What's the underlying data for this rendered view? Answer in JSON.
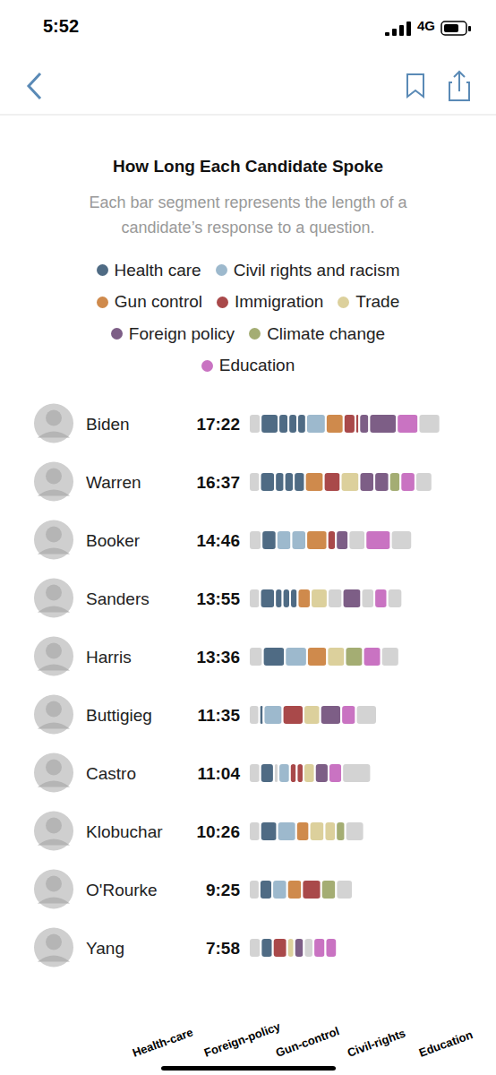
{
  "screen": {
    "status_time": "5:52",
    "network": "4G"
  },
  "chart_data": {
    "type": "bar",
    "orientation": "horizontal",
    "stacked": true,
    "title": "How Long Each Candidate Spoke",
    "subtitle": "Each bar segment represents the length of a candidate’s response to a question.",
    "legend": "top",
    "tick_labels": false,
    "xlim": [
      0,
      1100
    ],
    "series": [
      {
        "name": "Health care",
        "color": "#4f6b84"
      },
      {
        "name": "Civil rights and racism",
        "color": "#9db9cd"
      },
      {
        "name": "Gun control",
        "color": "#cf8a4c"
      },
      {
        "name": "Immigration",
        "color": "#a9494a"
      },
      {
        "name": "Trade",
        "color": "#dcd09c"
      },
      {
        "name": "Foreign policy",
        "color": "#7d5e86"
      },
      {
        "name": "Climate change",
        "color": "#a4ad73"
      },
      {
        "name": "Education",
        "color": "#c973c2"
      }
    ],
    "rows": [
      {
        "name": "Biden",
        "time": "17:22",
        "segments": [
          {
            "topic": null,
            "value": 64
          },
          {
            "topic": "Health care",
            "value": 97
          },
          {
            "topic": "Health care",
            "value": 54
          },
          {
            "topic": "Health care",
            "value": 48
          },
          {
            "topic": "Health care",
            "value": 48
          },
          {
            "topic": "Civil rights and racism",
            "value": 107
          },
          {
            "topic": "Gun control",
            "value": 97
          },
          {
            "topic": "Immigration",
            "value": 64
          },
          {
            "topic": "Immigration",
            "value": 21
          },
          {
            "topic": "Foreign policy",
            "value": 54
          },
          {
            "topic": "Foreign policy",
            "value": 150
          },
          {
            "topic": "Education",
            "value": 118
          },
          {
            "topic": null,
            "value": 118
          }
        ]
      },
      {
        "name": "Warren",
        "time": "16:37",
        "segments": [
          {
            "topic": null,
            "value": 61
          },
          {
            "topic": "Health care",
            "value": 81
          },
          {
            "topic": "Health care",
            "value": 51
          },
          {
            "topic": "Health care",
            "value": 51
          },
          {
            "topic": "Health care",
            "value": 61
          },
          {
            "topic": "Gun control",
            "value": 102
          },
          {
            "topic": "Immigration",
            "value": 92
          },
          {
            "topic": "Trade",
            "value": 102
          },
          {
            "topic": "Foreign policy",
            "value": 81
          },
          {
            "topic": "Foreign policy",
            "value": 81
          },
          {
            "topic": "Climate change",
            "value": 61
          },
          {
            "topic": "Education",
            "value": 81
          },
          {
            "topic": null,
            "value": 92
          }
        ]
      },
      {
        "name": "Booker",
        "time": "14:46",
        "segments": [
          {
            "topic": null,
            "value": 69
          },
          {
            "topic": "Health care",
            "value": 81
          },
          {
            "topic": "Civil rights and racism",
            "value": 81
          },
          {
            "topic": "Civil rights and racism",
            "value": 81
          },
          {
            "topic": "Gun control",
            "value": 115
          },
          {
            "topic": "Immigration",
            "value": 46
          },
          {
            "topic": "Foreign policy",
            "value": 69
          },
          {
            "topic": null,
            "value": 92
          },
          {
            "topic": "Education",
            "value": 138
          },
          {
            "topic": null,
            "value": 115
          }
        ]
      },
      {
        "name": "Sanders",
        "time": "13:55",
        "segments": [
          {
            "topic": null,
            "value": 61
          },
          {
            "topic": "Health care",
            "value": 81
          },
          {
            "topic": "Health care",
            "value": 41
          },
          {
            "topic": "Health care",
            "value": 41
          },
          {
            "topic": "Health care",
            "value": 41
          },
          {
            "topic": "Gun control",
            "value": 71
          },
          {
            "topic": "Trade",
            "value": 92
          },
          {
            "topic": null,
            "value": 81
          },
          {
            "topic": "Foreign policy",
            "value": 102
          },
          {
            "topic": null,
            "value": 71
          },
          {
            "topic": "Education",
            "value": 71
          },
          {
            "topic": null,
            "value": 81
          }
        ]
      },
      {
        "name": "Harris",
        "time": "13:36",
        "segments": [
          {
            "topic": null,
            "value": 76
          },
          {
            "topic": "Health care",
            "value": 120
          },
          {
            "topic": "Civil rights and racism",
            "value": 120
          },
          {
            "topic": "Gun control",
            "value": 109
          },
          {
            "topic": "Trade",
            "value": 98
          },
          {
            "topic": "Climate change",
            "value": 98
          },
          {
            "topic": "Education",
            "value": 98
          },
          {
            "topic": null,
            "value": 98
          }
        ]
      },
      {
        "name": "Buttigieg",
        "time": "11:35",
        "segments": [
          {
            "topic": null,
            "value": 57
          },
          {
            "topic": "Health care",
            "value": 23
          },
          {
            "topic": "Civil rights and racism",
            "value": 103
          },
          {
            "topic": "Immigration",
            "value": 114
          },
          {
            "topic": "Trade",
            "value": 91
          },
          {
            "topic": "Foreign policy",
            "value": 114
          },
          {
            "topic": "Education",
            "value": 80
          },
          {
            "topic": null,
            "value": 114
          }
        ]
      },
      {
        "name": "Castro",
        "time": "11:04",
        "segments": [
          {
            "topic": null,
            "value": 62
          },
          {
            "topic": "Health care",
            "value": 74
          },
          {
            "topic": null,
            "value": 25
          },
          {
            "topic": "Civil rights and racism",
            "value": 62
          },
          {
            "topic": "Immigration",
            "value": 37
          },
          {
            "topic": "Immigration",
            "value": 37
          },
          {
            "topic": "Trade",
            "value": 62
          },
          {
            "topic": "Foreign policy",
            "value": 74
          },
          {
            "topic": "Education",
            "value": 74
          },
          {
            "topic": null,
            "value": 157
          }
        ]
      },
      {
        "name": "Klobuchar",
        "time": "10:26",
        "segments": [
          {
            "topic": null,
            "value": 62
          },
          {
            "topic": "Health care",
            "value": 92
          },
          {
            "topic": "Civil rights and racism",
            "value": 103
          },
          {
            "topic": "Gun control",
            "value": 72
          },
          {
            "topic": "Trade",
            "value": 82
          },
          {
            "topic": "Trade",
            "value": 62
          },
          {
            "topic": "Climate change",
            "value": 51
          },
          {
            "topic": null,
            "value": 102
          }
        ]
      },
      {
        "name": "O'Rourke",
        "time": "9:25",
        "segments": [
          {
            "topic": null,
            "value": 58
          },
          {
            "topic": "Health care",
            "value": 69
          },
          {
            "topic": "Civil rights and racism",
            "value": 81
          },
          {
            "topic": "Gun control",
            "value": 81
          },
          {
            "topic": "Immigration",
            "value": 104
          },
          {
            "topic": "Climate change",
            "value": 81
          },
          {
            "topic": null,
            "value": 91
          }
        ]
      },
      {
        "name": "Yang",
        "time": "7:58",
        "segments": [
          {
            "topic": null,
            "value": 65
          },
          {
            "topic": "Health care",
            "value": 65
          },
          {
            "topic": "Immigration",
            "value": 78
          },
          {
            "topic": "Trade",
            "value": 39
          },
          {
            "topic": "Foreign policy",
            "value": 52
          },
          {
            "topic": null,
            "value": 52
          },
          {
            "topic": "Education",
            "value": 65
          },
          {
            "topic": "Education",
            "value": 62
          }
        ]
      }
    ]
  },
  "overlay_labels": [
    "Health-care",
    "Foreign-policy",
    "Gun-control",
    "Civil-rights",
    "Education"
  ]
}
